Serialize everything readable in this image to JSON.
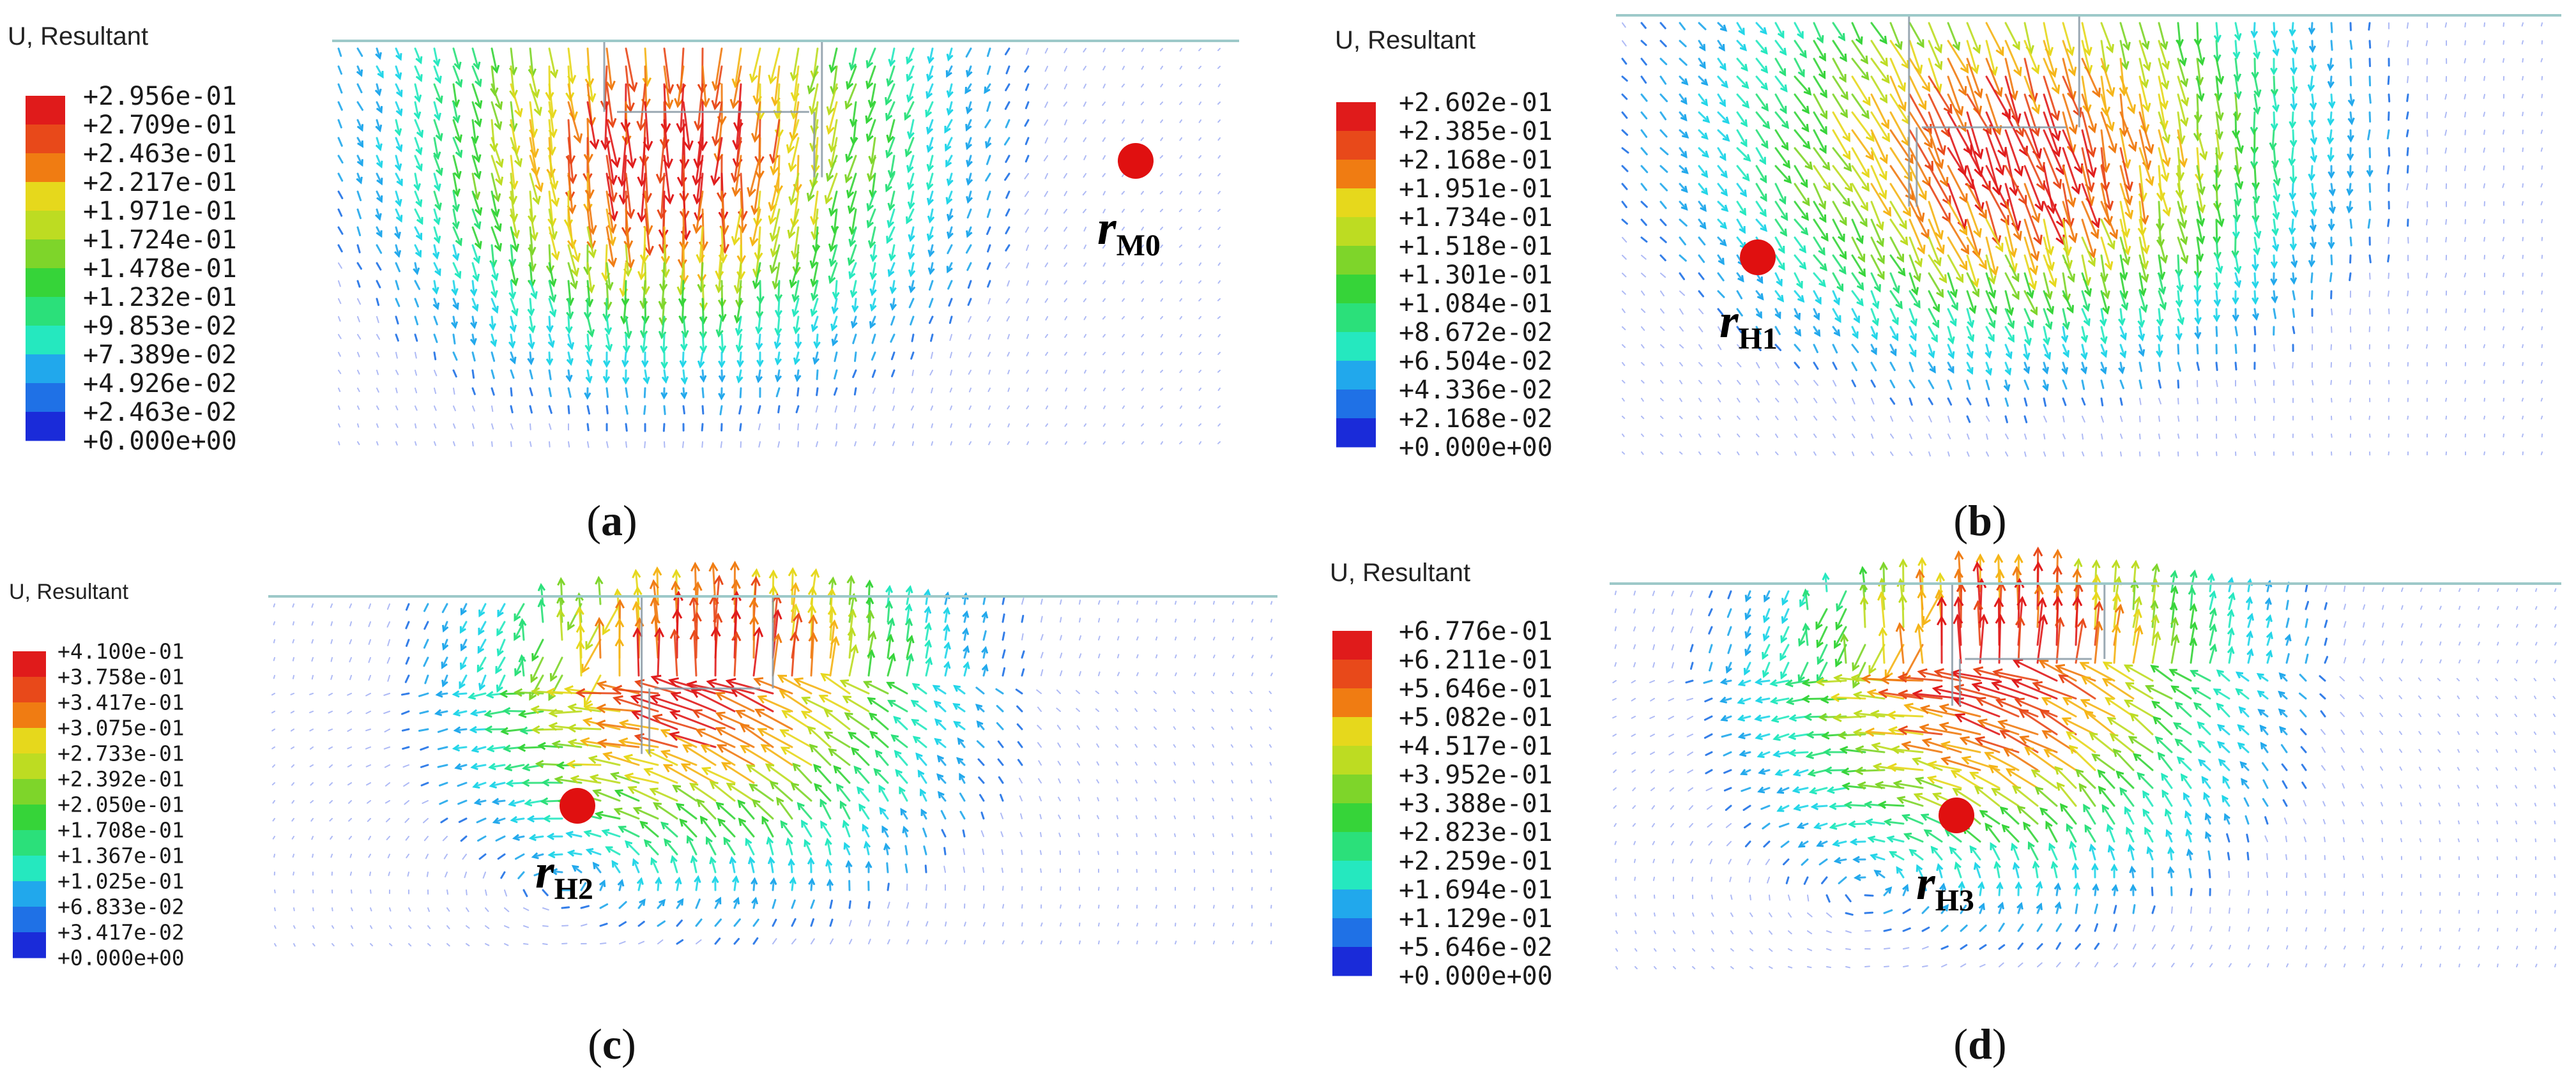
{
  "colors": {
    "scale": [
      "#1a2bd9",
      "#1f71e6",
      "#21a8ec",
      "#22d5e8",
      "#25e8bf",
      "#2be07a",
      "#36d439",
      "#7ed52a",
      "#bddc22",
      "#e6d81c",
      "#f5b416",
      "#f07c12",
      "#e8491a",
      "#e01b1b"
    ],
    "marker": "#e01010",
    "ground": "#9dc9c9"
  },
  "panels": [
    {
      "id": "a",
      "title": "U, Resultant",
      "caption_letter": "a",
      "legend": [
        "+2.956e-01",
        "+2.709e-01",
        "+2.463e-01",
        "+2.217e-01",
        "+1.971e-01",
        "+1.724e-01",
        "+1.478e-01",
        "+1.232e-01",
        "+9.853e-02",
        "+7.389e-02",
        "+4.926e-02",
        "+2.463e-02",
        "+0.000e+00"
      ],
      "radius": {
        "main": "r",
        "sub": "M0"
      }
    },
    {
      "id": "b",
      "title": "U, Resultant",
      "caption_letter": "b",
      "legend": [
        "+2.602e-01",
        "+2.385e-01",
        "+2.168e-01",
        "+1.951e-01",
        "+1.734e-01",
        "+1.518e-01",
        "+1.301e-01",
        "+1.084e-01",
        "+8.672e-02",
        "+6.504e-02",
        "+4.336e-02",
        "+2.168e-02",
        "+0.000e+00"
      ],
      "radius": {
        "main": "r",
        "sub": "H1"
      }
    },
    {
      "id": "c",
      "title": "U, Resultant",
      "caption_letter": "c",
      "legend": [
        "+4.100e-01",
        "+3.758e-01",
        "+3.417e-01",
        "+3.075e-01",
        "+2.733e-01",
        "+2.392e-01",
        "+2.050e-01",
        "+1.708e-01",
        "+1.367e-01",
        "+1.025e-01",
        "+6.833e-02",
        "+3.417e-02",
        "+0.000e+00"
      ],
      "radius": {
        "main": "r",
        "sub": "H2"
      }
    },
    {
      "id": "d",
      "title": "U, Resultant",
      "caption_letter": "d",
      "legend": [
        "+6.776e-01",
        "+6.211e-01",
        "+5.646e-01",
        "+5.082e-01",
        "+4.517e-01",
        "+3.952e-01",
        "+3.388e-01",
        "+2.823e-01",
        "+2.259e-01",
        "+1.694e-01",
        "+1.129e-01",
        "+5.646e-02",
        "+0.000e+00"
      ],
      "radius": {
        "main": "r",
        "sub": "H3"
      }
    }
  ]
}
